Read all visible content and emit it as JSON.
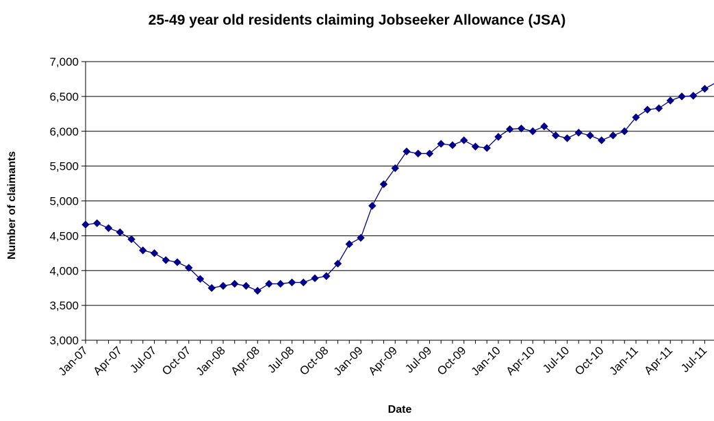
{
  "chart_data": {
    "type": "line",
    "title": "25-49 year old residents claiming Jobseeker Allowance (JSA)",
    "xlabel": "Date",
    "ylabel": "Number of claimants",
    "ylim": [
      3000,
      7000
    ],
    "yticks": [
      "3,000",
      "3,500",
      "4,000",
      "4,500",
      "5,000",
      "5,500",
      "6,000",
      "6,500",
      "7,000"
    ],
    "xticks": [
      "Jan-07",
      "Apr-07",
      "Jul-07",
      "Oct-07",
      "Jan-08",
      "Apr-08",
      "Jul-08",
      "Oct-08",
      "Jan-09",
      "Apr-09",
      "Jul-09",
      "Oct-09",
      "Jan-10",
      "Apr-10",
      "Jul-10",
      "Oct-10",
      "Jan-11",
      "Apr-11",
      "Jul-11"
    ],
    "grid": "horizontal",
    "legend": "none",
    "series_color": "#00008B",
    "series": [
      {
        "x": [
          "Jan-07",
          "Feb-07",
          "Mar-07",
          "Apr-07",
          "May-07",
          "Jun-07",
          "Jul-07",
          "Aug-07",
          "Sep-07",
          "Oct-07",
          "Nov-07",
          "Dec-07",
          "Jan-08",
          "Feb-08",
          "Mar-08",
          "Apr-08",
          "May-08",
          "Jun-08",
          "Jul-08",
          "Aug-08",
          "Sep-08",
          "Oct-08",
          "Nov-08",
          "Dec-08",
          "Jan-09",
          "Feb-09",
          "Mar-09",
          "Apr-09",
          "May-09",
          "Jun-09",
          "Jul-09",
          "Aug-09",
          "Sep-09",
          "Oct-09",
          "Nov-09",
          "Dec-09",
          "Jan-10",
          "Feb-10",
          "Mar-10",
          "Apr-10",
          "May-10",
          "Jun-10",
          "Jul-10",
          "Aug-10",
          "Sep-10",
          "Oct-10",
          "Nov-10",
          "Dec-10",
          "Jan-11",
          "Feb-11",
          "Mar-11",
          "Apr-11",
          "May-11",
          "Jun-11",
          "Jul-11",
          "Aug-11"
        ],
        "values": [
          4660,
          4680,
          4610,
          4550,
          4450,
          4290,
          4250,
          4150,
          4120,
          4040,
          3880,
          3750,
          3780,
          3810,
          3780,
          3710,
          3810,
          3810,
          3830,
          3830,
          3890,
          3920,
          4100,
          4380,
          4470,
          4930,
          5240,
          5470,
          5710,
          5680,
          5680,
          5820,
          5800,
          5870,
          5780,
          5760,
          5920,
          6030,
          6040,
          6000,
          6070,
          5940,
          5900,
          5980,
          5940,
          5870,
          5940,
          6000,
          6200,
          6310,
          6330,
          6440,
          6500,
          6510,
          6610,
          6700
        ]
      }
    ]
  }
}
